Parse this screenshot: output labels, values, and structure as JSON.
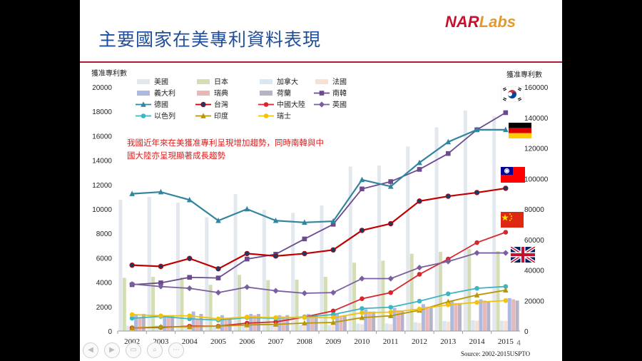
{
  "slide": {
    "title": "主要國家在美專利資料表現",
    "logo_nar": "NAR",
    "logo_labs": "Labs",
    "slide_number": "4",
    "source": "Source: 2002-2015USPTO",
    "accent_color": "#1f4e9e",
    "rule_color": "#b01c2e"
  },
  "nav_icons": [
    "back-icon",
    "forward-icon",
    "notes-icon",
    "zoom-icon",
    "more-icon"
  ],
  "chart_data": {
    "type": "bar+line",
    "ylabel_left": "獲准專利數",
    "ylabel_right": "獲准專利數",
    "ylim_left": [
      0,
      20000
    ],
    "ylim_right": [
      0,
      160000
    ],
    "yticks_left": [
      0,
      2000,
      4000,
      6000,
      8000,
      10000,
      12000,
      14000,
      16000,
      18000,
      20000
    ],
    "yticks_right": [
      0,
      20000,
      40000,
      60000,
      80000,
      100000,
      120000,
      140000,
      160000
    ],
    "categories": [
      "2002",
      "2003",
      "2004",
      "2005",
      "2006",
      "2007",
      "2008",
      "2009",
      "2010",
      "2011",
      "2012",
      "2013",
      "2014",
      "2015"
    ],
    "annotation": [
      "我國近年來在美獲准專利呈現增加趨勢，同時南韓與中",
      "國大陸亦呈現顯著成長趨勢"
    ],
    "annotation_color": "#d81e1e",
    "bar_series": [
      {
        "name": "美國",
        "axis": "right",
        "color": "#e3e8ee",
        "values": [
          86000,
          87900,
          84300,
          74600,
          89800,
          79500,
          77500,
          82400,
          107800,
          108600,
          121000,
          133600,
          144600,
          140900
        ]
      },
      {
        "name": "日本",
        "axis": "right",
        "color": "#d4ddb4",
        "values": [
          34900,
          35500,
          35300,
          30300,
          36800,
          33400,
          33700,
          35500,
          44800,
          46100,
          50700,
          51900,
          53800,
          52400
        ]
      },
      {
        "name": "加拿大",
        "axis": "right",
        "color": "#dae6f3",
        "values": [
          3400,
          3600,
          3400,
          2900,
          3600,
          3900,
          3900,
          3700,
          4900,
          5000,
          5800,
          6500,
          7000,
          6800
        ]
      },
      {
        "name": "法國",
        "axis": "right",
        "color": "#f7e1d2",
        "values": [
          4000,
          4000,
          3400,
          2900,
          3400,
          3700,
          3800,
          3600,
          4500,
          4500,
          5400,
          6100,
          6700,
          6600
        ]
      },
      {
        "name": "義大利",
        "axis": "left",
        "color": "#adb9e0",
        "values": [
          1300,
          1300,
          1600,
          1300,
          1400,
          1300,
          1400,
          1400,
          1800,
          1900,
          2200,
          2500,
          2600,
          2700
        ]
      },
      {
        "name": "瑞典",
        "axis": "left",
        "color": "#e8b8b8",
        "values": [
          1100,
          1100,
          1000,
          900,
          1300,
          1200,
          1200,
          1200,
          1600,
          1700,
          2000,
          2300,
          2500,
          2600
        ]
      },
      {
        "name": "荷蘭",
        "axis": "left",
        "color": "#b7b3c6",
        "values": [
          1400,
          1300,
          1400,
          1100,
          1400,
          1300,
          1300,
          1300,
          1600,
          1700,
          1900,
          2300,
          2400,
          2500
        ]
      }
    ],
    "line_series": [
      {
        "name": "南韓",
        "axis": "left",
        "color": "#6b4a8e",
        "marker": "square",
        "values": [
          3800,
          3950,
          4400,
          4350,
          5900,
          6300,
          7550,
          8750,
          11650,
          12250,
          13250,
          14550,
          16500,
          17900
        ]
      },
      {
        "name": "德國",
        "axis": "left",
        "color": "#31859c",
        "marker": "triangle",
        "values": [
          11250,
          11400,
          10750,
          9050,
          10000,
          9050,
          8900,
          9000,
          12400,
          11850,
          13800,
          15500,
          16500,
          16500
        ]
      },
      {
        "name": "台灣",
        "axis": "left",
        "color": "#c00000",
        "marker": "circle-dark",
        "values": [
          5400,
          5300,
          5950,
          5100,
          6350,
          6150,
          6350,
          6650,
          8250,
          8800,
          10650,
          11050,
          11350,
          11700
        ]
      },
      {
        "name": "中國大陸",
        "axis": "left",
        "color": "#d8262c",
        "marker": "circle",
        "values": [
          250,
          300,
          400,
          400,
          650,
          750,
          1150,
          1650,
          2650,
          3150,
          4650,
          5900,
          7250,
          8100
        ]
      },
      {
        "name": "英國",
        "axis": "left",
        "color": "#7a5ea0",
        "marker": "diamond",
        "values": [
          3850,
          3650,
          3500,
          3150,
          3600,
          3300,
          3100,
          3150,
          4300,
          4300,
          5200,
          5700,
          6400,
          6400
        ]
      },
      {
        "name": "以色列",
        "axis": "left",
        "color": "#3cb6c4",
        "marker": "circle",
        "values": [
          1050,
          1200,
          1000,
          900,
          1100,
          1050,
          1150,
          1350,
          1850,
          1950,
          2450,
          3050,
          3500,
          3650
        ]
      },
      {
        "name": "印度",
        "axis": "left",
        "color": "#b8960a",
        "marker": "triangle",
        "values": [
          250,
          350,
          350,
          400,
          500,
          550,
          650,
          700,
          1100,
          1250,
          1700,
          2400,
          2950,
          3350
        ]
      },
      {
        "name": "瑞士",
        "axis": "left",
        "color": "#f2c20c",
        "marker": "circle",
        "values": [
          1350,
          1250,
          1250,
          1000,
          1150,
          1100,
          1100,
          1100,
          1500,
          1550,
          1800,
          2150,
          2350,
          2500
        ]
      }
    ],
    "legend": [
      [
        "美國",
        "日本",
        "加拿大",
        "法國"
      ],
      [
        "義大利",
        "瑞典",
        "荷蘭",
        "南韓"
      ],
      [
        "德國",
        "台灣",
        "中國大陸",
        "英國"
      ],
      [
        "以色列",
        "印度",
        "瑞士"
      ]
    ],
    "flags": [
      {
        "country": "South Korea",
        "name": "flag-korea-icon"
      },
      {
        "country": "Germany",
        "name": "flag-germany-icon"
      },
      {
        "country": "Taiwan",
        "name": "flag-taiwan-icon"
      },
      {
        "country": "China",
        "name": "flag-china-icon"
      },
      {
        "country": "United Kingdom",
        "name": "flag-uk-icon"
      }
    ]
  }
}
